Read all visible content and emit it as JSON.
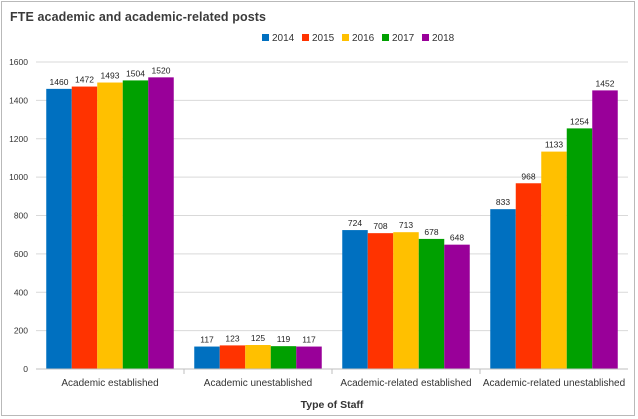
{
  "chart_data": {
    "type": "bar",
    "title": "FTE academic and academic-related posts",
    "xlabel": "Type of Staff",
    "ylabel": "",
    "ylim": [
      0,
      1600
    ],
    "yticks": [
      0,
      200,
      400,
      600,
      800,
      1000,
      1200,
      1400,
      1600
    ],
    "grid": true,
    "legend": "top-right",
    "categories": [
      "Academic established",
      "Academic unestablished",
      "Academic-related established",
      "Academic-related unestablished"
    ],
    "series": [
      {
        "name": "2014",
        "color": "#0070c0",
        "values": [
          1460,
          117,
          724,
          833
        ]
      },
      {
        "name": "2015",
        "color": "#ff3300",
        "values": [
          1472,
          123,
          708,
          968
        ]
      },
      {
        "name": "2016",
        "color": "#ffc000",
        "values": [
          1493,
          125,
          713,
          1133
        ]
      },
      {
        "name": "2017",
        "color": "#00a000",
        "values": [
          1504,
          119,
          678,
          1254
        ]
      },
      {
        "name": "2018",
        "color": "#990099",
        "values": [
          1520,
          117,
          648,
          1452
        ]
      }
    ]
  }
}
